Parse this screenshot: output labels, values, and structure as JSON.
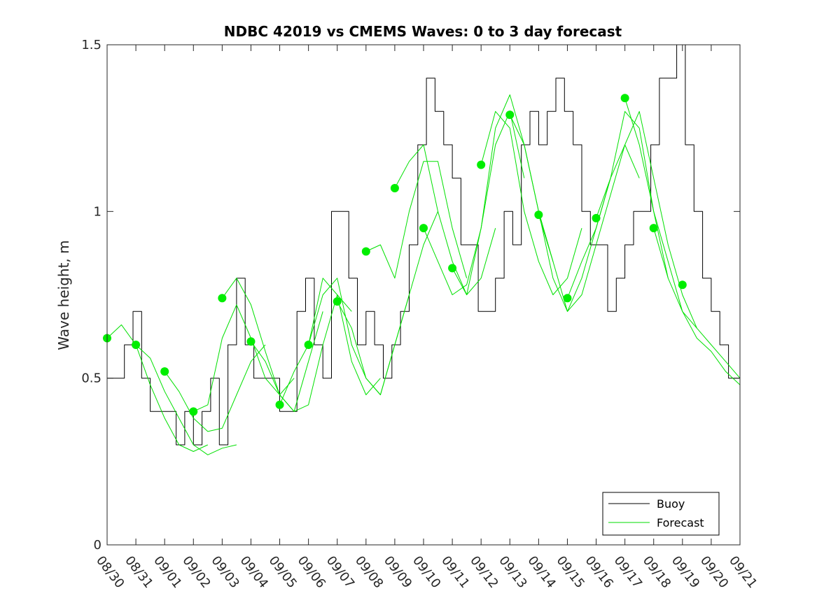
{
  "chart_data": {
    "type": "line",
    "title": "NDBC 42019 vs CMEMS Waves: 0 to 3 day forecast",
    "xlabel": "",
    "ylabel": "Wave height, m",
    "ylim": [
      0,
      1.5
    ],
    "xlim": [
      0,
      22
    ],
    "y_ticks": [
      {
        "value": 0,
        "label": "0"
      },
      {
        "value": 0.5,
        "label": "0.5"
      },
      {
        "value": 1,
        "label": "1"
      },
      {
        "value": 1.5,
        "label": "1.5"
      }
    ],
    "x_tick_labels": [
      "08/30",
      "08/31",
      "09/01",
      "09/02",
      "09/03",
      "09/04",
      "09/05",
      "09/06",
      "09/07",
      "09/08",
      "09/09",
      "09/10",
      "09/11",
      "09/12",
      "09/13",
      "09/14",
      "09/15",
      "09/16",
      "09/17",
      "09/18",
      "09/19",
      "09/20",
      "09/21"
    ],
    "legend": {
      "placement": "bottom-right",
      "entries": [
        {
          "name": "Buoy",
          "color": "#000000"
        },
        {
          "name": "Forecast",
          "color": "#00cc00"
        }
      ]
    },
    "colors": {
      "buoy": "#000000",
      "forecast": "#00e000",
      "analysis_marker": "#00ee00"
    },
    "series": [
      {
        "name": "Buoy",
        "x": [
          0,
          0.3,
          0.6,
          0.9,
          1.2,
          1.5,
          1.8,
          2.1,
          2.4,
          2.7,
          3.0,
          3.3,
          3.6,
          3.9,
          4.2,
          4.5,
          4.8,
          5.1,
          5.4,
          5.7,
          6.0,
          6.3,
          6.6,
          6.9,
          7.2,
          7.5,
          7.8,
          8.1,
          8.4,
          8.7,
          9.0,
          9.3,
          9.6,
          9.9,
          10.2,
          10.5,
          10.8,
          11.1,
          11.4,
          11.7,
          12.0,
          12.3,
          12.6,
          12.9,
          13.2,
          13.5,
          13.8,
          14.1,
          14.4,
          14.7,
          15.0,
          15.3,
          15.6,
          15.9,
          16.2,
          16.5,
          16.8,
          17.1,
          17.4,
          17.7,
          18.0,
          18.3,
          18.6,
          18.9,
          19.2,
          19.5,
          19.8,
          20.1,
          20.4,
          20.7,
          21.0,
          21.3,
          21.6,
          22.0
        ],
        "values": [
          0.5,
          0.5,
          0.6,
          0.7,
          0.5,
          0.4,
          0.4,
          0.4,
          0.3,
          0.4,
          0.3,
          0.4,
          0.5,
          0.3,
          0.6,
          0.8,
          0.6,
          0.5,
          0.5,
          0.5,
          0.4,
          0.4,
          0.7,
          0.8,
          0.6,
          0.5,
          1.0,
          1.0,
          0.8,
          0.6,
          0.7,
          0.6,
          0.5,
          0.6,
          0.7,
          0.9,
          1.2,
          1.4,
          1.3,
          1.2,
          1.1,
          0.9,
          0.9,
          0.7,
          0.7,
          0.8,
          1.0,
          0.9,
          1.2,
          1.3,
          1.2,
          1.3,
          1.4,
          1.3,
          1.2,
          1.0,
          0.9,
          0.9,
          0.7,
          0.8,
          0.9,
          1.0,
          1.0,
          1.2,
          1.4,
          1.4,
          1.5,
          1.2,
          1.0,
          0.8,
          0.7,
          0.6,
          0.5,
          0.5
        ]
      },
      {
        "name": "Forecast 1",
        "x": [
          0,
          0.5,
          1,
          1.5,
          2,
          2.5,
          3,
          3.5
        ],
        "values": [
          0.62,
          0.66,
          0.6,
          0.48,
          0.38,
          0.3,
          0.28,
          0.3
        ]
      },
      {
        "name": "Forecast 2",
        "x": [
          1,
          1.5,
          2,
          2.5,
          3,
          3.5,
          4,
          4.5
        ],
        "values": [
          0.6,
          0.56,
          0.46,
          0.38,
          0.3,
          0.27,
          0.29,
          0.3
        ]
      },
      {
        "name": "Forecast 3",
        "x": [
          2,
          2.5,
          3,
          3.5,
          4,
          4.5,
          5,
          5.5
        ],
        "values": [
          0.52,
          0.46,
          0.38,
          0.34,
          0.35,
          0.45,
          0.55,
          0.6
        ]
      },
      {
        "name": "Forecast 4",
        "x": [
          3,
          3.5,
          4,
          4.5,
          5,
          5.5,
          6,
          6.5
        ],
        "values": [
          0.4,
          0.42,
          0.62,
          0.72,
          0.62,
          0.5,
          0.45,
          0.5
        ]
      },
      {
        "name": "Forecast 5",
        "x": [
          4,
          4.5,
          5,
          5.5,
          6,
          6.5,
          7,
          7.5
        ],
        "values": [
          0.74,
          0.8,
          0.72,
          0.58,
          0.45,
          0.4,
          0.55,
          0.7
        ]
      },
      {
        "name": "Forecast 6",
        "x": [
          5,
          5.5,
          6,
          6.5,
          7,
          7.5,
          8,
          8.5
        ],
        "values": [
          0.61,
          0.55,
          0.45,
          0.4,
          0.42,
          0.6,
          0.75,
          0.7
        ]
      },
      {
        "name": "Forecast 7",
        "x": [
          6,
          6.5,
          7,
          7.5,
          8,
          8.5,
          9,
          9.5
        ],
        "values": [
          0.42,
          0.52,
          0.6,
          0.8,
          0.75,
          0.55,
          0.45,
          0.5
        ]
      },
      {
        "name": "Forecast 8",
        "x": [
          7,
          7.5,
          8,
          8.5,
          9,
          9.5,
          10,
          10.5
        ],
        "values": [
          0.6,
          0.75,
          0.8,
          0.6,
          0.5,
          0.45,
          0.6,
          0.75
        ]
      },
      {
        "name": "Forecast 9",
        "x": [
          8,
          8.5,
          9,
          9.5,
          10,
          10.5,
          11,
          11.5
        ],
        "values": [
          0.73,
          0.65,
          0.5,
          0.45,
          0.6,
          0.75,
          0.9,
          1.0
        ]
      },
      {
        "name": "Forecast 10",
        "x": [
          9,
          9.5,
          10,
          10.5,
          11,
          11.5,
          12,
          12.5
        ],
        "values": [
          0.88,
          0.9,
          0.8,
          1.0,
          1.15,
          1.15,
          0.95,
          0.8
        ]
      },
      {
        "name": "Forecast 11",
        "x": [
          10,
          10.5,
          11,
          11.5,
          12,
          12.5,
          13,
          13.5
        ],
        "values": [
          1.07,
          1.15,
          1.2,
          1.0,
          0.85,
          0.75,
          0.8,
          0.95
        ]
      },
      {
        "name": "Forecast 12",
        "x": [
          11,
          11.5,
          12,
          12.5,
          13,
          13.5,
          14,
          14.5
        ],
        "values": [
          0.95,
          0.85,
          0.75,
          0.78,
          0.95,
          1.2,
          1.3,
          1.1
        ]
      },
      {
        "name": "Forecast 13",
        "x": [
          12,
          12.5,
          13,
          13.5,
          14,
          14.5,
          15,
          15.5
        ],
        "values": [
          0.83,
          0.75,
          0.95,
          1.25,
          1.35,
          1.2,
          1.0,
          0.85
        ]
      },
      {
        "name": "Forecast 14",
        "x": [
          13,
          13.5,
          14,
          14.5,
          15,
          15.5,
          16,
          16.5
        ],
        "values": [
          1.14,
          1.3,
          1.25,
          1.0,
          0.85,
          0.75,
          0.8,
          0.95
        ]
      },
      {
        "name": "Forecast 15",
        "x": [
          14,
          14.5,
          15,
          15.5,
          16,
          16.5,
          17,
          17.5
        ],
        "values": [
          1.29,
          1.2,
          1.0,
          0.8,
          0.7,
          0.8,
          0.95,
          1.1
        ]
      },
      {
        "name": "Forecast 16",
        "x": [
          15,
          15.5,
          16,
          16.5,
          17,
          17.5,
          18,
          18.5
        ],
        "values": [
          0.99,
          0.85,
          0.7,
          0.75,
          0.9,
          1.05,
          1.2,
          1.1
        ]
      },
      {
        "name": "Forecast 17",
        "x": [
          16,
          16.5,
          17,
          17.5,
          18,
          18.5,
          19,
          19.5
        ],
        "values": [
          0.74,
          0.85,
          0.95,
          1.1,
          1.3,
          1.25,
          1.0,
          0.8
        ]
      },
      {
        "name": "Forecast 18",
        "x": [
          17,
          17.5,
          18,
          18.5,
          19,
          19.5,
          20,
          20.5
        ],
        "values": [
          0.98,
          1.1,
          1.2,
          1.3,
          1.1,
          0.9,
          0.75,
          0.65
        ]
      },
      {
        "name": "Forecast 19",
        "x": [
          18,
          18.5,
          19,
          19.5,
          20,
          20.5,
          21,
          21.5,
          22
        ],
        "values": [
          1.34,
          1.2,
          1.0,
          0.85,
          0.7,
          0.65,
          0.6,
          0.55,
          0.5
        ]
      },
      {
        "name": "Forecast 20",
        "x": [
          19,
          19.5,
          20,
          20.5,
          21,
          21.5,
          22
        ],
        "values": [
          0.95,
          0.8,
          0.7,
          0.62,
          0.58,
          0.52,
          0.48
        ]
      }
    ],
    "analysis_points": {
      "x": [
        0,
        1,
        2,
        3,
        4,
        5,
        6,
        7,
        8,
        9,
        10,
        11,
        12,
        13,
        14,
        15,
        16,
        17,
        18,
        19,
        20
      ],
      "values": [
        0.62,
        0.6,
        0.52,
        0.4,
        0.74,
        0.61,
        0.42,
        0.6,
        0.73,
        0.88,
        1.07,
        0.95,
        0.83,
        1.14,
        1.29,
        0.99,
        0.74,
        0.98,
        1.34,
        0.95,
        0.78
      ]
    }
  }
}
